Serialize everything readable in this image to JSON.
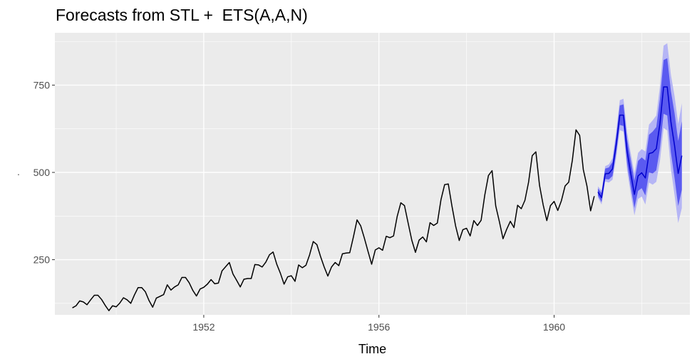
{
  "chart_data": {
    "type": "line",
    "title": "Forecasts from STL +  ETS(A,A,N)",
    "xlabel": "Time",
    "ylabel": "",
    "ylabel_mark": ".",
    "xlim": [
      1948.6,
      1963.1
    ],
    "ylim": [
      92,
      900
    ],
    "x_ticks": [
      1952,
      1956,
      1960
    ],
    "y_ticks": [
      250,
      500,
      750
    ],
    "grid": true,
    "background": "#ebebeb",
    "series": [
      {
        "role": "observed",
        "color": "#000000",
        "x_start": 1949.0,
        "step": 0.0833333,
        "values": [
          112,
          118,
          132,
          129,
          121,
          135,
          148,
          148,
          136,
          119,
          104,
          118,
          115,
          126,
          141,
          135,
          125,
          149,
          170,
          170,
          158,
          133,
          114,
          140,
          145,
          150,
          178,
          163,
          172,
          178,
          199,
          199,
          184,
          162,
          146,
          166,
          171,
          180,
          193,
          181,
          183,
          218,
          230,
          242,
          209,
          191,
          172,
          194,
          196,
          196,
          236,
          235,
          229,
          243,
          264,
          272,
          237,
          211,
          180,
          201,
          204,
          188,
          235,
          227,
          234,
          264,
          302,
          293,
          259,
          229,
          203,
          229,
          242,
          233,
          267,
          269,
          270,
          315,
          364,
          347,
          312,
          274,
          237,
          278,
          284,
          277,
          317,
          313,
          318,
          374,
          413,
          405,
          355,
          306,
          271,
          306,
          315,
          301,
          356,
          348,
          355,
          422,
          465,
          467,
          404,
          347,
          305,
          336,
          340,
          318,
          362,
          348,
          363,
          435,
          491,
          505,
          404,
          359,
          310,
          337,
          360,
          342,
          406,
          396,
          420,
          472,
          548,
          559,
          463,
          407,
          362,
          405,
          417,
          391,
          419,
          461,
          472,
          535,
          622,
          606,
          508,
          461,
          390,
          432
        ]
      },
      {
        "role": "forecast",
        "color": "#0000cc",
        "band80_color": "#5a5af0",
        "band95_color": "#b5b5f5",
        "x_start": 1961.0,
        "step": 0.0833333,
        "values": [
          444,
          428,
          496,
          497,
          510,
          579,
          664,
          664,
          561,
          497,
          437,
          490,
          499,
          484,
          554,
          557,
          568,
          640,
          745,
          745,
          645,
          577,
          497,
          548
        ],
        "lo80": [
          434,
          415,
          481,
          480,
          490,
          555,
          636,
          633,
          526,
          459,
          398,
          447,
          455,
          434,
          500,
          497,
          506,
          570,
          668,
          663,
          557,
          484,
          404,
          450
        ],
        "hi80": [
          454,
          441,
          511,
          514,
          530,
          603,
          692,
          695,
          596,
          535,
          476,
          533,
          543,
          534,
          608,
          617,
          630,
          710,
          822,
          827,
          733,
          670,
          590,
          646
        ],
        "lo95": [
          428,
          408,
          474,
          471,
          479,
          542,
          621,
          617,
          507,
          439,
          377,
          424,
          431,
          408,
          471,
          465,
          473,
          533,
          627,
          620,
          510,
          435,
          355,
          398
        ],
        "hi95": [
          460,
          448,
          518,
          523,
          541,
          616,
          707,
          711,
          615,
          555,
          497,
          556,
          567,
          560,
          637,
          649,
          663,
          747,
          863,
          870,
          780,
          719,
          639,
          698
        ]
      }
    ]
  }
}
